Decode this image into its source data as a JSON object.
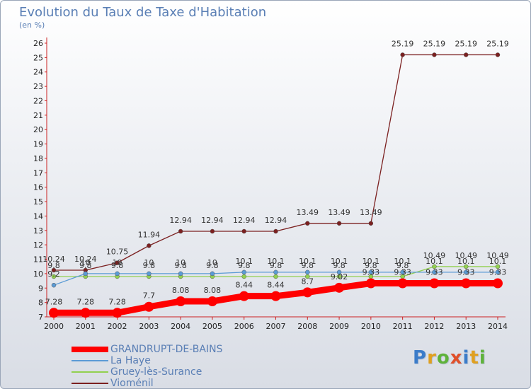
{
  "title": "Evolution du Taux de Taxe d'Habitation",
  "subtitle": "(en %)",
  "logo": {
    "text": "Proxiti",
    "colors": [
      "#3b7cc9",
      "#e0a020",
      "#5fb23a",
      "#e0502a"
    ]
  },
  "chart_data": {
    "type": "line",
    "x": [
      2000,
      2001,
      2002,
      2003,
      2004,
      2005,
      2006,
      2007,
      2008,
      2009,
      2010,
      2011,
      2012,
      2013,
      2014
    ],
    "ylim": [
      7,
      26
    ],
    "yticks": [
      7,
      8,
      9,
      10,
      11,
      12,
      13,
      14,
      15,
      16,
      17,
      18,
      19,
      20,
      21,
      22,
      23,
      24,
      25,
      26
    ],
    "grid": false,
    "legend_placement": "bottom-left",
    "series": [
      {
        "name": "GRANDRUPT-DE-BAINS",
        "color": "#ff0000",
        "values": [
          7.28,
          7.28,
          7.28,
          7.7,
          8.08,
          8.08,
          8.44,
          8.44,
          8.7,
          9.02,
          9.33,
          9.33,
          9.33,
          9.33,
          9.33
        ],
        "labels": [
          "7.28",
          "7.28",
          "7.28",
          "7.7",
          "8.08",
          "8.08",
          "8.44",
          "8.44",
          "8.7",
          "9.02",
          "9.33",
          "9.33",
          "9.33",
          "9.33",
          "9.33"
        ]
      },
      {
        "name": "La Haye",
        "color": "#5b9bd5",
        "values": [
          9.2,
          10,
          10,
          10,
          10,
          10,
          10.1,
          10.1,
          10.1,
          10.1,
          10.1,
          10.1,
          10.1,
          10.1,
          10.1
        ],
        "labels": [
          "9.2",
          "10",
          "10",
          "10",
          "10",
          "10",
          "10.1",
          "10.1",
          "10.1",
          "10.1",
          "10.1",
          "10.1",
          "10.1",
          "10.1",
          "10.1"
        ]
      },
      {
        "name": "Gruey-lès-Surance",
        "color": "#92d050",
        "values": [
          9.8,
          9.8,
          9.8,
          9.8,
          9.8,
          9.8,
          9.8,
          9.8,
          9.8,
          9.8,
          9.8,
          9.8,
          10.49,
          10.49,
          10.49
        ],
        "labels": [
          "9.8",
          "9.8",
          "9.8",
          "9.8",
          "9.8",
          "9.8",
          "9.8",
          "9.8",
          "9.8",
          "9.8",
          "9.8",
          "9.8",
          "10.49",
          "10.49",
          "10.49"
        ]
      },
      {
        "name": "Vioménil",
        "color": "#7b2020",
        "values": [
          10.24,
          10.24,
          10.75,
          11.94,
          12.94,
          12.94,
          12.94,
          12.94,
          13.49,
          13.49,
          13.49,
          25.19,
          25.19,
          25.19,
          25.19
        ],
        "labels": [
          "10.24",
          "10.24",
          "10.75",
          "11.94",
          "12.94",
          "12.94",
          "12.94",
          "12.94",
          "13.49",
          "13.49",
          "13.49",
          "25.19",
          "25.19",
          "25.19",
          "25.19"
        ]
      }
    ]
  }
}
